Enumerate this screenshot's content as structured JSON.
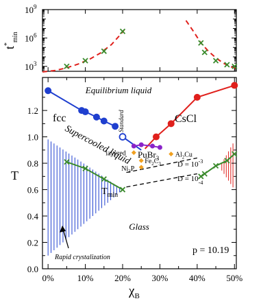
{
  "chart_data": [
    {
      "panel": "top",
      "type": "line",
      "ylabel_main": "t",
      "ylabel_sup": "*",
      "ylabel_sub": "min",
      "yscale": "log",
      "ylim": [
        300,
        1000000000
      ],
      "xlim": [
        -1.5,
        50.5
      ],
      "yticks": [
        {
          "value": 1000,
          "base": "10",
          "exp": "3"
        },
        {
          "value": 1000000,
          "base": "10",
          "exp": "6"
        },
        {
          "value": 1000000000,
          "base": "10",
          "exp": "9"
        }
      ],
      "series": [
        {
          "kind": "fit-left",
          "color": "#e0201c",
          "dash": true,
          "x": [
            -1.5,
            2,
            5,
            8,
            11,
            14,
            17,
            19.5,
            21
          ],
          "y": [
            260,
            370,
            700,
            1700,
            5300,
            25000,
            200000,
            2500000,
            14000000
          ]
        },
        {
          "kind": "fit-right",
          "color": "#e0201c",
          "dash": true,
          "x": [
            37,
            39,
            41,
            43,
            45,
            47,
            49,
            50.5
          ],
          "y": [
            70000000,
            5000000,
            300000,
            40000,
            8000,
            2200,
            900,
            600
          ]
        },
        {
          "kind": "points",
          "color": "#3a8a2c",
          "marker": "x",
          "x": [
            5,
            10,
            15,
            20,
            41,
            42,
            45,
            48,
            50
          ],
          "y": [
            1000,
            4000,
            40000,
            5000000,
            300000,
            30000,
            4000,
            1500,
            1000
          ]
        }
      ]
    },
    {
      "panel": "bottom",
      "type": "line",
      "xlabel_main": "χ",
      "xlabel_sub": "B",
      "ylabel": "T",
      "xlim": [
        -1.5,
        50.5
      ],
      "ylim": [
        0.0,
        1.45
      ],
      "xticks": [
        {
          "value": 0,
          "label": "0%"
        },
        {
          "value": 10,
          "label": "10%"
        },
        {
          "value": 20,
          "label": "20%"
        },
        {
          "value": 30,
          "label": "30%"
        },
        {
          "value": 40,
          "label": "40%"
        },
        {
          "value": 50,
          "label": "50%"
        }
      ],
      "yticks": [
        {
          "value": 0.0,
          "label": "0.0"
        },
        {
          "value": 0.2,
          "label": "0.2"
        },
        {
          "value": 0.4,
          "label": "0.4"
        },
        {
          "value": 0.6,
          "label": "0.6"
        },
        {
          "value": 0.8,
          "label": "0.8"
        },
        {
          "value": 1.0,
          "label": "1.0"
        },
        {
          "value": 1.2,
          "label": "1.2"
        }
      ],
      "series": [
        {
          "name": "fcc",
          "color": "#1f3fcf",
          "kind": "line-dots",
          "x": [
            0,
            9,
            10,
            13,
            15,
            18
          ],
          "y": [
            1.35,
            1.2,
            1.19,
            1.15,
            1.12,
            1.08
          ],
          "extra_x": [
            20,
            25
          ],
          "extra_y": [
            1.0,
            0.9
          ]
        },
        {
          "name": "CsCl",
          "color": "#e0201c",
          "kind": "line-dots",
          "x": [
            50,
            40,
            33,
            29
          ],
          "y": [
            1.39,
            1.3,
            1.1,
            1.0
          ],
          "extra_x": [
            29,
            26
          ],
          "extra_y": [
            1.0,
            0.91
          ]
        },
        {
          "name": "PuBr3",
          "color": "#8a23c9",
          "kind": "line-dots",
          "x": [
            23,
            25,
            28,
            30
          ],
          "y": [
            0.93,
            0.94,
            0.93,
            0.92
          ]
        },
        {
          "name": "Tmin",
          "color": "#3a8a2c",
          "kind": "line-x",
          "x": [
            5,
            10,
            15,
            20
          ],
          "y": [
            0.81,
            0.76,
            0.68,
            0.6
          ]
        },
        {
          "name": "Tmin-right",
          "color": "#3a8a2c",
          "kind": "line-x",
          "x": [
            41,
            42,
            45,
            48,
            50
          ],
          "y": [
            0.7,
            0.72,
            0.78,
            0.82,
            0.87
          ]
        },
        {
          "name": "D=10^-3",
          "color": "#000000",
          "kind": "dashed",
          "x": [
            21,
            40
          ],
          "y": [
            0.73,
            0.84
          ]
        },
        {
          "name": "D=10^-4",
          "color": "#000000",
          "kind": "dashed",
          "x": [
            21,
            40
          ],
          "y": [
            0.62,
            0.72
          ]
        }
      ],
      "standard_point": {
        "x": 20,
        "y": 1.0,
        "color": "#1f3fcf"
      },
      "orange_points": [
        {
          "label": "layered",
          "x": 23,
          "y": 0.88,
          "label_side": "left"
        },
        {
          "label": "Fe",
          "sub1": "2",
          "label2": "C",
          "sub2": "",
          "x": 25,
          "y": 0.82,
          "label_side": "right"
        },
        {
          "label": "Ni",
          "sub1": "3",
          "label2": "P",
          "sub2": "",
          "x": 25,
          "y": 0.77,
          "label_side": "left"
        },
        {
          "label": "Al",
          "sub1": "2",
          "label2": "Cu",
          "sub2": "",
          "x": 33,
          "y": 0.87,
          "label_side": "right"
        }
      ],
      "hatch_left": {
        "color": "#1f3fcf",
        "x_start": 0,
        "x_end": 20,
        "top_start": 0.98,
        "top_end": 0.6,
        "bottom_start": 0.1,
        "bottom_end": 0.6
      },
      "hatch_right": {
        "color": "#e0201c",
        "x_start": 46,
        "x_end": 50,
        "top_start": 0.77,
        "top_end": 0.97,
        "bottom_start": 0.77,
        "bottom_end": 0.6
      }
    }
  ],
  "text": {
    "equilibrium": "Equilibrium liquid",
    "supercooled": "Supercooled liquid",
    "glass": "Glass",
    "rapid": "Rapid crystalization",
    "standard": "Standard",
    "fcc": "fcc",
    "cscl": "CsCl",
    "pubr_main": "PuBr",
    "pubr_sub": "3",
    "tmin_main": "T",
    "tmin_sub": "min",
    "pressure": "p = 10.19",
    "d3_main": "D = 10",
    "d3_exp": "-3",
    "d4_main": "D = 10",
    "d4_exp": "-4",
    "fe_sub": "3",
    "cu_sub": "",
    "p_sub": ""
  }
}
